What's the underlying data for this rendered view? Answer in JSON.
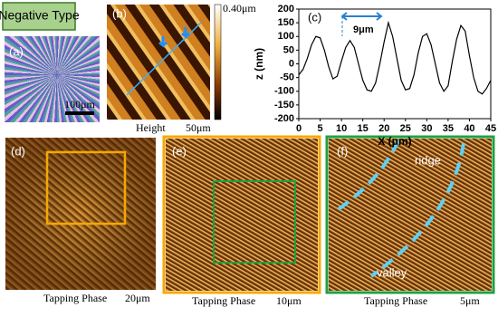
{
  "label_box": "Negative Type",
  "panels": {
    "a": {
      "label": "(a)",
      "scale": "100μm"
    },
    "b": {
      "label": "(b)",
      "colorbar": "0.40μm",
      "caption": "Height",
      "scale": "50μm"
    },
    "d": {
      "label": "(d)",
      "caption": "Tapping Phase",
      "scale": "20μm"
    },
    "e": {
      "label": "(e)",
      "caption": "Tapping Phase",
      "scale": "10μm"
    },
    "f": {
      "label": "(f)",
      "ridge": "ridge",
      "valley": "valley",
      "caption": "Tapping Phase",
      "scale": "5μm"
    }
  },
  "chart_data": {
    "type": "line",
    "panel_label": "(c)",
    "annotation": "9μm",
    "x_label": "X (μm)",
    "y_label": "z (nm)",
    "x": [
      0,
      1,
      2,
      3,
      4,
      5,
      6,
      7,
      8,
      9,
      10,
      11,
      12,
      13,
      14,
      15,
      16,
      17,
      18,
      19,
      20,
      21,
      22,
      23,
      24,
      25,
      26,
      27,
      28,
      29,
      30,
      31,
      32,
      33,
      34,
      35,
      36,
      37,
      38,
      39,
      40,
      41,
      42,
      43,
      44,
      45
    ],
    "series": [
      {
        "color": "#000000",
        "values": [
          -40,
          -20,
          20,
          70,
          100,
          95,
          50,
          -10,
          -55,
          -45,
          10,
          60,
          85,
          60,
          0,
          -60,
          -95,
          -100,
          -70,
          0,
          80,
          150,
          100,
          20,
          -60,
          -95,
          -90,
          -40,
          40,
          100,
          110,
          70,
          0,
          -70,
          -100,
          -80,
          10,
          90,
          140,
          120,
          30,
          -50,
          -100,
          -110,
          -90,
          -60
        ]
      }
    ],
    "xlim": [
      0,
      45
    ],
    "xticks": [
      0,
      5,
      10,
      15,
      20,
      25,
      30,
      35,
      40,
      45
    ],
    "ylim": [
      -200,
      200
    ],
    "yticks": [
      -200,
      -150,
      -100,
      -50,
      0,
      50,
      100,
      150,
      200
    ]
  }
}
